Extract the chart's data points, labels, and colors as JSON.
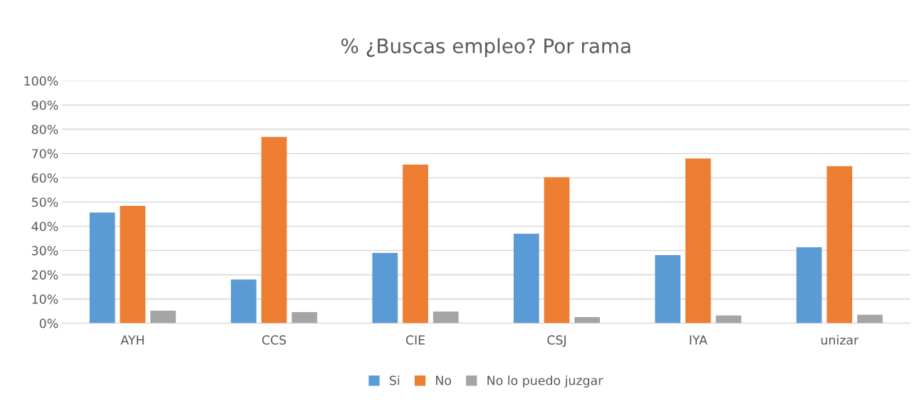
{
  "chart_data": {
    "type": "bar",
    "title": "% ¿Buscas empleo? Por rama",
    "categories": [
      "AYH",
      "CCS",
      "CIE",
      "CSJ",
      "IYA",
      "unizar"
    ],
    "series": [
      {
        "name": "Si",
        "color": "#5b9bd5",
        "values": [
          45.7,
          18.0,
          29.0,
          36.9,
          28.1,
          31.3
        ]
      },
      {
        "name": "No",
        "color": "#ed7d31",
        "values": [
          48.4,
          76.8,
          65.4,
          60.2,
          67.9,
          64.8
        ]
      },
      {
        "name": "No lo puedo juzgar",
        "color": "#a5a5a5",
        "values": [
          5.2,
          4.6,
          4.8,
          2.5,
          3.2,
          3.5
        ]
      }
    ],
    "ylim": [
      0,
      100
    ],
    "yticks": [
      {
        "value": 0,
        "label": "0%"
      },
      {
        "value": 10,
        "label": "10%"
      },
      {
        "value": 20,
        "label": "20%"
      },
      {
        "value": 30,
        "label": "30%"
      },
      {
        "value": 40,
        "label": "40%"
      },
      {
        "value": 50,
        "label": "50%"
      },
      {
        "value": 60,
        "label": "60%"
      },
      {
        "value": 70,
        "label": "70%"
      },
      {
        "value": 80,
        "label": "80%"
      },
      {
        "value": 90,
        "label": "90%"
      },
      {
        "value": 100,
        "label": "100%"
      }
    ],
    "grid": "y",
    "legend": "bottom"
  }
}
